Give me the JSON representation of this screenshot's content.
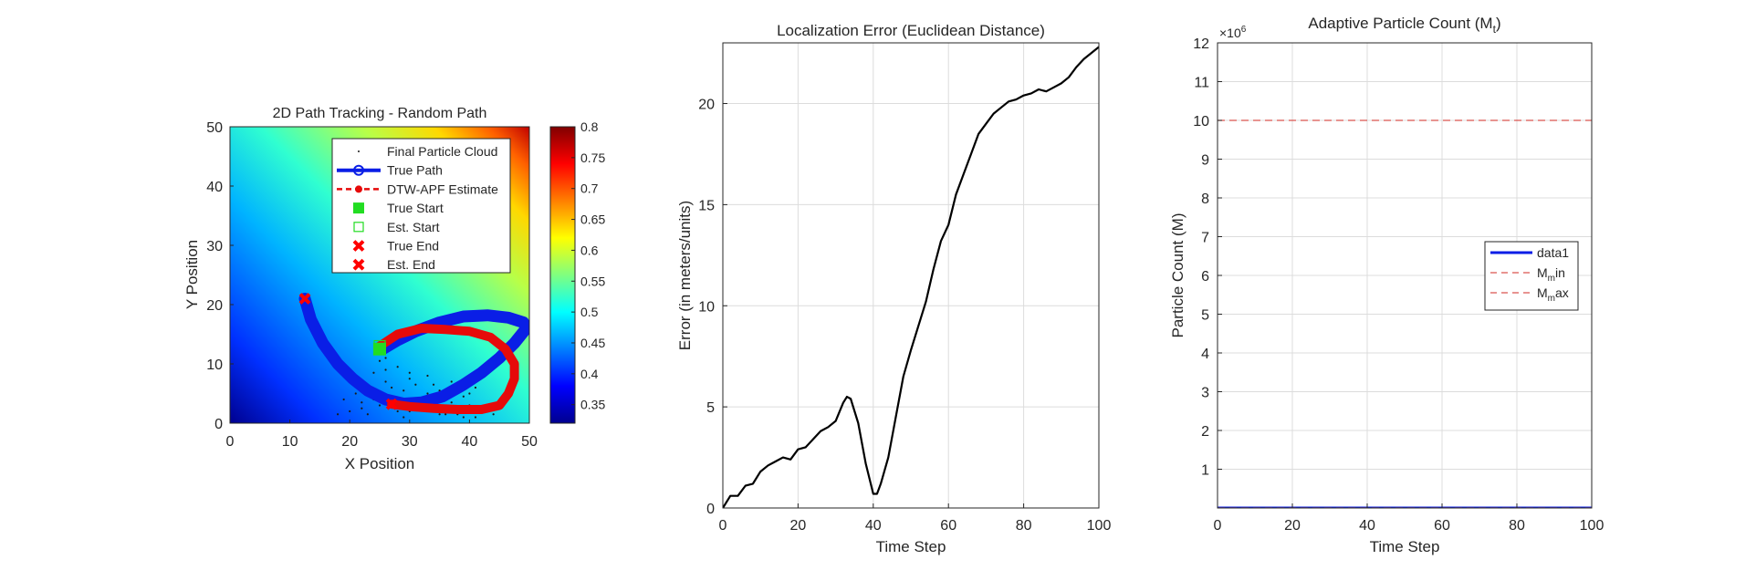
{
  "colors": {
    "true_path": "#0a1ee6",
    "estimate": "#e60a0a",
    "true_start": "#22dd22",
    "end_marker": "#ff0000",
    "error_line": "#000000",
    "limit_line": "#d9534f",
    "data1": "#0a1ee6",
    "colormap": "jet",
    "axis": "#262626",
    "grid": "#dcdcdc"
  },
  "chart_data": [
    {
      "type": "scatter",
      "title": "2D Path Tracking  - Random Path",
      "xlabel": "X Position",
      "ylabel": "Y Position",
      "xlim": [
        0,
        50
      ],
      "ylim": [
        0,
        50
      ],
      "xticks": [
        "0",
        "10",
        "20",
        "30",
        "40",
        "50"
      ],
      "yticks": [
        "0",
        "10",
        "20",
        "30",
        "40",
        "50"
      ],
      "background": "heatmap (jet colormap), low values bottom-left, high values top-right",
      "legend_position": "top-right",
      "legend": [
        "Final Particle Cloud",
        "True Path",
        "DTW-APF Estimate",
        "True Start",
        "Est. Start",
        "True End",
        "Est. End"
      ],
      "colorbar": {
        "ticks": [
          "0.35",
          "0.4",
          "0.45",
          "0.5",
          "0.55",
          "0.6",
          "0.65",
          "0.7",
          "0.75",
          "0.8"
        ],
        "range": [
          0.32,
          0.8
        ]
      },
      "series": [
        {
          "name": "True Path",
          "x": [
            12.5,
            13.5,
            15.5,
            18.0,
            20.5,
            23.0,
            26.0,
            29.0,
            32.0,
            35.5,
            39.0,
            42.0,
            45.0,
            47.5,
            49.5,
            49.0,
            46.5,
            43.0,
            39.0,
            35.0,
            31.0,
            28.0,
            25.5
          ],
          "y": [
            21.0,
            17.5,
            13.5,
            10.0,
            7.5,
            5.5,
            4.0,
            3.3,
            3.5,
            4.5,
            6.5,
            8.5,
            11.0,
            13.5,
            16.0,
            17.0,
            17.8,
            18.2,
            18.0,
            17.0,
            15.5,
            14.0,
            12.5
          ]
        },
        {
          "name": "DTW-APF Estimate",
          "x": [
            25.0,
            28.0,
            32.0,
            36.0,
            40.0,
            43.5,
            46.0,
            47.5,
            47.5,
            46.5,
            45.0,
            42.0,
            38.0,
            34.0,
            30.0,
            27.0
          ],
          "y": [
            13.0,
            15.0,
            16.0,
            15.8,
            15.5,
            14.5,
            12.5,
            10.0,
            7.5,
            5.0,
            3.0,
            2.3,
            2.3,
            2.5,
            2.8,
            3.2
          ]
        },
        {
          "name": "Final Particle Cloud",
          "x": [
            18,
            20,
            22,
            23,
            24,
            25,
            26,
            27,
            28,
            29,
            30,
            31,
            32,
            33,
            34,
            35,
            36,
            37,
            38,
            39,
            40,
            41,
            42,
            21,
            23,
            24,
            26,
            27,
            29,
            30,
            32,
            33,
            35,
            37,
            39,
            41,
            43,
            25,
            28,
            31,
            34,
            36,
            38,
            40,
            44,
            19,
            22,
            26,
            30
          ],
          "y": [
            1.5,
            2.0,
            3.5,
            6.0,
            8.5,
            10.5,
            7.0,
            4.5,
            9.5,
            5.5,
            2.0,
            6.5,
            4.0,
            8.0,
            3.0,
            5.5,
            2.5,
            7.0,
            1.5,
            4.5,
            3.0,
            1.0,
            2.5,
            5.0,
            1.5,
            4.0,
            9.0,
            6.0,
            1.0,
            7.5,
            2.5,
            5.0,
            1.5,
            3.5,
            1.0,
            6.0,
            2.0,
            3.0,
            2.0,
            3.5,
            6.5,
            1.5,
            2.0,
            5.0,
            1.5,
            4.0,
            2.5,
            11.0,
            8.5
          ]
        },
        {
          "name": "True Start",
          "x": [
            25.0
          ],
          "y": [
            12.5
          ]
        },
        {
          "name": "Est. Start",
          "x": [
            25.0
          ],
          "y": [
            13.0
          ]
        },
        {
          "name": "True End",
          "x": [
            12.5
          ],
          "y": [
            21.0
          ]
        },
        {
          "name": "Est. End",
          "x": [
            27.0
          ],
          "y": [
            3.2
          ]
        }
      ]
    },
    {
      "type": "line",
      "title": "Localization Error (Euclidean Distance)",
      "xlabel": "Time Step",
      "ylabel": "Error (in meters/units)",
      "xlim": [
        0,
        100
      ],
      "ylim": [
        0,
        23
      ],
      "xticks": [
        "0",
        "20",
        "40",
        "60",
        "80",
        "100"
      ],
      "yticks": [
        "0",
        "5",
        "10",
        "15",
        "20"
      ],
      "grid": true,
      "x": [
        0,
        2,
        4,
        6,
        8,
        10,
        12,
        14,
        16,
        18,
        20,
        22,
        24,
        26,
        28,
        30,
        32,
        33,
        34,
        36,
        38,
        40,
        41,
        42,
        44,
        46,
        48,
        50,
        52,
        54,
        56,
        58,
        60,
        62,
        64,
        66,
        68,
        70,
        72,
        74,
        76,
        78,
        80,
        82,
        84,
        86,
        88,
        90,
        92,
        94,
        96,
        98,
        100
      ],
      "y": [
        0.0,
        0.6,
        0.6,
        1.1,
        1.2,
        1.8,
        2.1,
        2.3,
        2.5,
        2.4,
        2.9,
        3.0,
        3.4,
        3.8,
        4.0,
        4.3,
        5.2,
        5.5,
        5.4,
        4.2,
        2.2,
        0.7,
        0.7,
        1.2,
        2.5,
        4.5,
        6.5,
        7.8,
        9.0,
        10.2,
        11.8,
        13.2,
        14.0,
        15.5,
        16.5,
        17.5,
        18.5,
        19.0,
        19.5,
        19.8,
        20.1,
        20.2,
        20.4,
        20.5,
        20.7,
        20.6,
        20.8,
        21.0,
        21.3,
        21.8,
        22.2,
        22.5,
        22.8
      ]
    },
    {
      "type": "line",
      "title": "Adaptive Particle Count (M_t)",
      "title_parts": {
        "base": "Adaptive Particle Count (M",
        "sub": "t",
        "end": ")"
      },
      "xlabel": "Time Step",
      "ylabel": "Particle Count (M)",
      "xlim": [
        0,
        100
      ],
      "ylim": [
        0,
        12
      ],
      "y_exponent": "×10",
      "y_exponent_power": "6",
      "xticks": [
        "0",
        "20",
        "40",
        "60",
        "80",
        "100"
      ],
      "yticks": [
        "1",
        "2",
        "3",
        "4",
        "5",
        "6",
        "7",
        "8",
        "9",
        "10",
        "11",
        "12"
      ],
      "grid": true,
      "legend_position": "right",
      "legend": [
        {
          "name": "data1"
        },
        {
          "pre": "M",
          "sub": "m",
          "post": "in"
        },
        {
          "pre": "M",
          "sub": "m",
          "post": "ax"
        }
      ],
      "series": [
        {
          "name": "data1",
          "x": [
            0,
            100
          ],
          "values": [
            0.0,
            0.0
          ],
          "style": "solid"
        },
        {
          "name": "M_min",
          "x": [
            0,
            100
          ],
          "values": [
            0.0,
            0.0
          ],
          "style": "dashed"
        },
        {
          "name": "M_max",
          "x": [
            0,
            100
          ],
          "values": [
            10.0,
            10.0
          ],
          "style": "dashed"
        }
      ]
    }
  ]
}
